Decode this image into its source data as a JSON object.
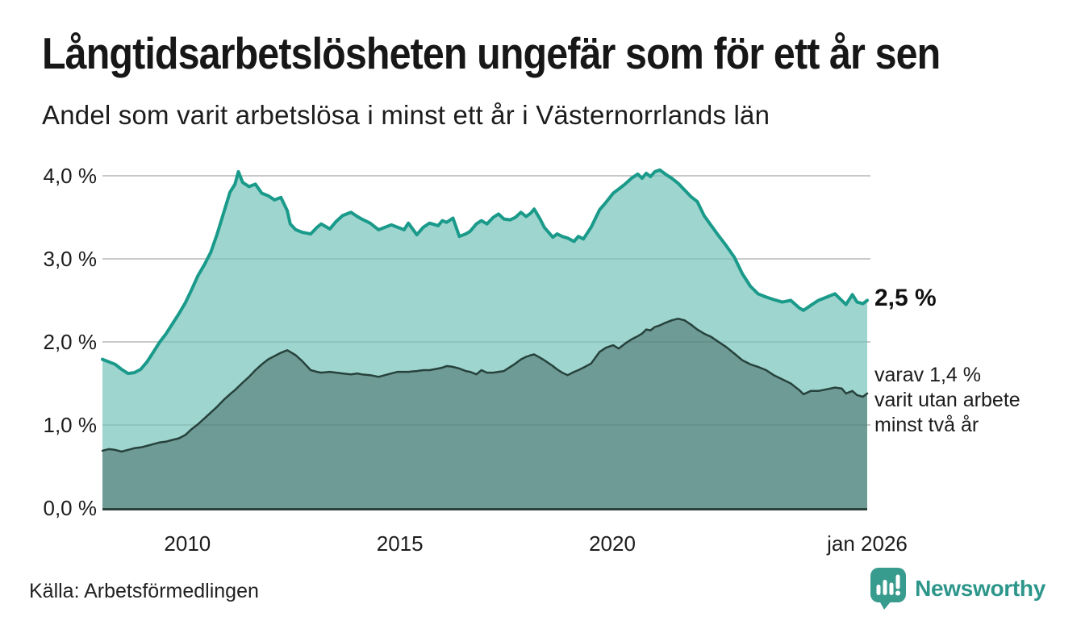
{
  "header": {
    "title": "Långtidsarbetslösheten ungefär som för ett år sen",
    "subtitle": "Andel som varit arbetslösa i minst ett år i Västernorrlands län"
  },
  "chart_data": {
    "type": "area",
    "title": "Långtidsarbetslösheten ungefär som för ett år sen",
    "subtitle": "Andel som varit arbetslösa i minst ett år i Västernorrlands län",
    "grid": "horizontal",
    "grid_color": "#dcdcdc",
    "axis_color": "#2b423d",
    "legend_position": "none",
    "xlim": [
      2008,
      2026
    ],
    "ylim": [
      0,
      4.3
    ],
    "x": [
      2008.0,
      2008.15,
      2008.3,
      2008.45,
      2008.6,
      2008.75,
      2008.9,
      2009.05,
      2009.2,
      2009.35,
      2009.5,
      2009.65,
      2009.8,
      2009.95,
      2010.1,
      2010.25,
      2010.4,
      2010.55,
      2010.7,
      2010.85,
      2011.0,
      2011.12,
      2011.2,
      2011.3,
      2011.45,
      2011.6,
      2011.75,
      2011.9,
      2012.05,
      2012.2,
      2012.35,
      2012.42,
      2012.55,
      2012.7,
      2012.9,
      2013.05,
      2013.15,
      2013.35,
      2013.5,
      2013.65,
      2013.85,
      2014.0,
      2014.1,
      2014.3,
      2014.5,
      2014.65,
      2014.8,
      2014.95,
      2015.1,
      2015.2,
      2015.4,
      2015.55,
      2015.7,
      2015.9,
      2016.0,
      2016.1,
      2016.25,
      2016.4,
      2016.55,
      2016.65,
      2016.8,
      2016.92,
      2017.05,
      2017.2,
      2017.32,
      2017.45,
      2017.6,
      2017.72,
      2017.85,
      2017.97,
      2018.08,
      2018.16,
      2018.3,
      2018.4,
      2018.6,
      2018.7,
      2018.82,
      2018.95,
      2019.1,
      2019.2,
      2019.32,
      2019.5,
      2019.7,
      2019.85,
      2020.02,
      2020.15,
      2020.3,
      2020.45,
      2020.6,
      2020.7,
      2020.8,
      2020.9,
      2021.0,
      2021.12,
      2021.25,
      2021.4,
      2021.55,
      2021.7,
      2021.85,
      2022.0,
      2022.16,
      2022.33,
      2022.5,
      2022.68,
      2022.87,
      2023.06,
      2023.25,
      2023.43,
      2023.62,
      2023.8,
      2024.0,
      2024.2,
      2024.4,
      2024.5,
      2024.67,
      2024.85,
      2025.05,
      2025.24,
      2025.4,
      2025.5,
      2025.65,
      2025.76,
      2025.9,
      2026.0
    ],
    "series": [
      {
        "name": "Andel arbetslösa minst ett år",
        "color": "#1a9a8a",
        "fill": "#9ed5ce",
        "line_width": 4,
        "values": [
          1.79,
          1.76,
          1.73,
          1.67,
          1.62,
          1.63,
          1.67,
          1.76,
          1.88,
          2.0,
          2.1,
          2.22,
          2.34,
          2.47,
          2.63,
          2.8,
          2.93,
          3.08,
          3.3,
          3.55,
          3.8,
          3.9,
          4.05,
          3.92,
          3.87,
          3.9,
          3.79,
          3.76,
          3.71,
          3.74,
          3.58,
          3.42,
          3.35,
          3.32,
          3.3,
          3.38,
          3.42,
          3.36,
          3.45,
          3.52,
          3.56,
          3.51,
          3.48,
          3.43,
          3.35,
          3.38,
          3.41,
          3.38,
          3.35,
          3.43,
          3.29,
          3.38,
          3.43,
          3.4,
          3.46,
          3.44,
          3.49,
          3.27,
          3.3,
          3.33,
          3.42,
          3.46,
          3.42,
          3.5,
          3.54,
          3.48,
          3.47,
          3.5,
          3.56,
          3.51,
          3.55,
          3.6,
          3.48,
          3.38,
          3.26,
          3.3,
          3.27,
          3.25,
          3.21,
          3.27,
          3.24,
          3.38,
          3.59,
          3.68,
          3.79,
          3.84,
          3.9,
          3.97,
          4.02,
          3.97,
          4.03,
          3.99,
          4.05,
          4.07,
          4.02,
          3.97,
          3.91,
          3.83,
          3.75,
          3.69,
          3.52,
          3.4,
          3.28,
          3.16,
          3.02,
          2.82,
          2.67,
          2.58,
          2.54,
          2.51,
          2.48,
          2.5,
          2.41,
          2.38,
          2.44,
          2.5,
          2.54,
          2.58,
          2.5,
          2.45,
          2.57,
          2.48,
          2.46,
          2.5
        ]
      },
      {
        "name": "varav utan arbete minst två år",
        "color": "#27423c",
        "fill": "#6f9b96",
        "line_width": 2.5,
        "values": [
          0.69,
          0.71,
          0.7,
          0.68,
          0.7,
          0.72,
          0.73,
          0.75,
          0.77,
          0.79,
          0.8,
          0.82,
          0.84,
          0.88,
          0.95,
          1.01,
          1.08,
          1.15,
          1.22,
          1.3,
          1.37,
          1.42,
          1.46,
          1.51,
          1.58,
          1.66,
          1.73,
          1.79,
          1.83,
          1.87,
          1.9,
          1.88,
          1.84,
          1.77,
          1.66,
          1.64,
          1.63,
          1.64,
          1.63,
          1.62,
          1.61,
          1.62,
          1.61,
          1.6,
          1.58,
          1.6,
          1.62,
          1.64,
          1.64,
          1.64,
          1.65,
          1.66,
          1.66,
          1.68,
          1.69,
          1.71,
          1.7,
          1.68,
          1.65,
          1.64,
          1.61,
          1.66,
          1.63,
          1.63,
          1.64,
          1.65,
          1.7,
          1.74,
          1.79,
          1.82,
          1.84,
          1.85,
          1.81,
          1.78,
          1.71,
          1.67,
          1.63,
          1.6,
          1.64,
          1.66,
          1.69,
          1.74,
          1.88,
          1.93,
          1.96,
          1.92,
          1.98,
          2.03,
          2.07,
          2.1,
          2.15,
          2.14,
          2.18,
          2.2,
          2.23,
          2.26,
          2.28,
          2.26,
          2.21,
          2.15,
          2.1,
          2.06,
          2.0,
          1.94,
          1.86,
          1.78,
          1.73,
          1.7,
          1.66,
          1.6,
          1.55,
          1.5,
          1.42,
          1.37,
          1.41,
          1.41,
          1.43,
          1.45,
          1.44,
          1.38,
          1.41,
          1.36,
          1.34,
          1.38
        ]
      }
    ],
    "y_ticks": [
      {
        "value": 0,
        "label": "0,0 %"
      },
      {
        "value": 1,
        "label": "1,0 %"
      },
      {
        "value": 2,
        "label": "2,0 %"
      },
      {
        "value": 3,
        "label": "3,0 %"
      },
      {
        "value": 4,
        "label": "4,0 %"
      }
    ],
    "x_ticks": [
      {
        "value": 2010,
        "label": "2010"
      },
      {
        "value": 2015,
        "label": "2015"
      },
      {
        "value": 2020,
        "label": "2020"
      },
      {
        "value": 2026,
        "label": "jan 2026"
      }
    ],
    "annotations": {
      "end_value_label": "2,5 %",
      "sub_lines": [
        "varav 1,4 %",
        "varit utan arbete",
        "minst två år"
      ]
    }
  },
  "footer": {
    "source": "Källa: Arbetsförmedlingen",
    "brand": "Newsworthy"
  },
  "colors": {
    "accent_teal": "#1a9a8a",
    "light_fill": "#9ed5ce",
    "dark_fill": "#6f9b96",
    "dark_line": "#27423c",
    "brand_teal": "#2d968b",
    "logo_bubble": "#379b8d"
  }
}
